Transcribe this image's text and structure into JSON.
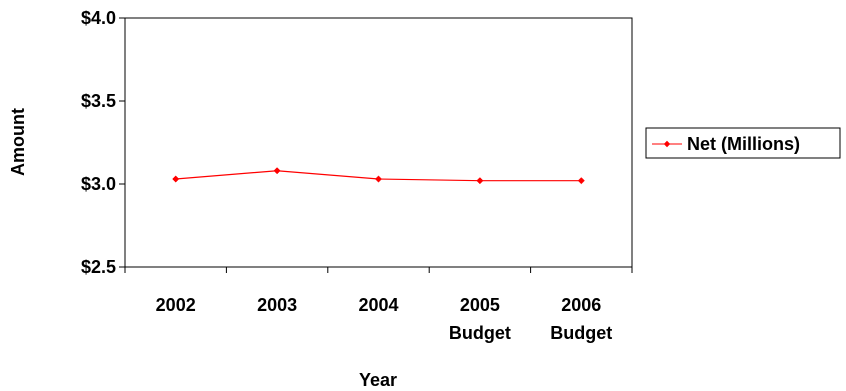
{
  "chart_data": {
    "type": "line",
    "title": "",
    "xlabel": "Year",
    "ylabel": "Amount",
    "categories": [
      [
        "2002"
      ],
      [
        "2003"
      ],
      [
        "2004"
      ],
      [
        "2005",
        "Budget"
      ],
      [
        "2006",
        "Budget"
      ]
    ],
    "series": [
      {
        "name": "Net (Millions)",
        "values": [
          3.03,
          3.08,
          3.03,
          3.02,
          3.02
        ]
      }
    ],
    "ylim": [
      2.5,
      4.0
    ],
    "yticks": [
      {
        "value": 2.5,
        "label": "$2.5"
      },
      {
        "value": 3.0,
        "label": "$3.0"
      },
      {
        "value": 3.5,
        "label": "$3.5"
      },
      {
        "value": 4.0,
        "label": "$4.0"
      }
    ],
    "grid": false,
    "legend": "right",
    "colors": {
      "series": "#ff0000",
      "axis": "#000000",
      "frame": "#000000"
    }
  }
}
